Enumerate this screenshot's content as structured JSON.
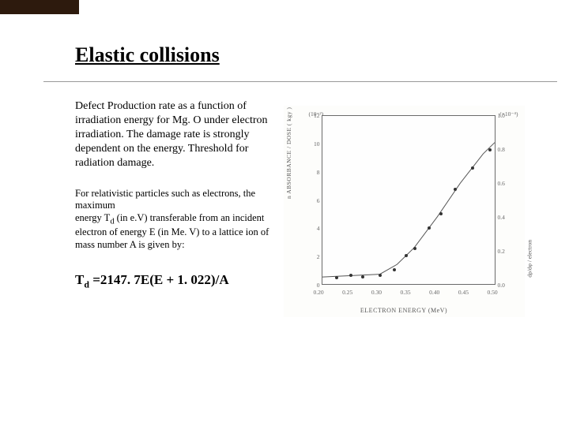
{
  "title": "Elastic collisions",
  "para1": "Defect Production rate as a function of irradiation energy for Mg. O under electron irradiation. The damage rate is strongly dependent on the energy. Threshold  for radiation damage.",
  "para2_a": "For relativistic particles such as electrons, the maximum",
  "para2_b": "energy T",
  "para2_sub": "d",
  "para2_c": " (in e.V) transferable from an incident electron of energy E (in Me. V) to a lattice ion of mass number A is given  by:",
  "eqn_a": "T",
  "eqn_sub": "d",
  "eqn_b": " =2147. 7E(E + 1. 022)/A",
  "chart": {
    "type": "scatter-with-curve",
    "background_color": "#fefefe",
    "border_color": "#6a6a6a",
    "text_color": "#555555",
    "point_color": "#333333",
    "curve_color": "#555555",
    "xlabel": "ELECTRON ENERGY  (MeV)",
    "ylabel_left": "n  ABSORBANCE / DOSE  ( kgy )",
    "ylabel_right": "dρ/dφ / electron",
    "exp_left": "(10⁻²)",
    "exp_right": "(×10⁻⁴)",
    "xlim": [
      0.2,
      0.5
    ],
    "xticks": [
      0.2,
      0.25,
      0.3,
      0.35,
      0.4,
      0.45,
      0.5
    ],
    "ylim_left": [
      0,
      12
    ],
    "yticks_left": [
      0,
      2,
      4,
      6,
      8,
      10,
      12
    ],
    "ylim_right": [
      0,
      1.0
    ],
    "yticks_right": [
      0.0,
      0.2,
      0.4,
      0.6,
      0.8,
      1.0
    ],
    "points": [
      {
        "x": 0.225,
        "y": 0.55
      },
      {
        "x": 0.25,
        "y": 0.7
      },
      {
        "x": 0.27,
        "y": 0.6
      },
      {
        "x": 0.3,
        "y": 0.7
      },
      {
        "x": 0.325,
        "y": 1.1
      },
      {
        "x": 0.345,
        "y": 2.1
      },
      {
        "x": 0.36,
        "y": 2.6
      },
      {
        "x": 0.385,
        "y": 4.1
      },
      {
        "x": 0.405,
        "y": 5.1
      },
      {
        "x": 0.43,
        "y": 6.8
      },
      {
        "x": 0.46,
        "y": 8.3
      },
      {
        "x": 0.49,
        "y": 9.6
      }
    ],
    "curve": [
      {
        "x": 0.2,
        "y": 0.5
      },
      {
        "x": 0.3,
        "y": 0.7
      },
      {
        "x": 0.33,
        "y": 1.4
      },
      {
        "x": 0.36,
        "y": 2.6
      },
      {
        "x": 0.4,
        "y": 4.8
      },
      {
        "x": 0.44,
        "y": 7.2
      },
      {
        "x": 0.48,
        "y": 9.3
      },
      {
        "x": 0.5,
        "y": 10.1
      }
    ]
  }
}
